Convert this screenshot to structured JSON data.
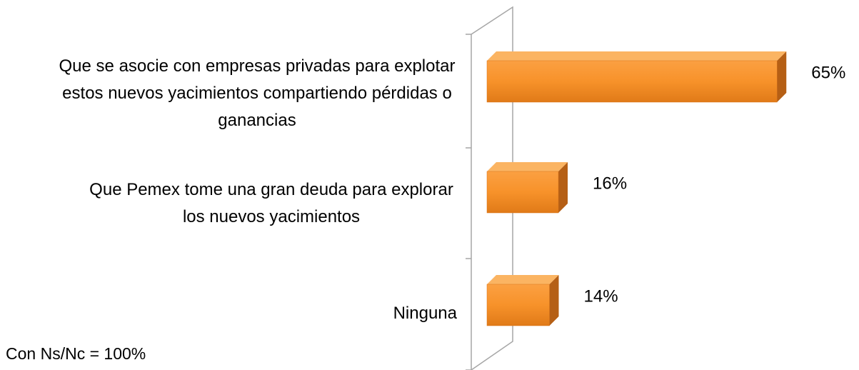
{
  "chart_data": {
    "type": "bar3d_horizontal",
    "categories": [
      "Que se asocie con empresas privadas para explotar estos nuevos yacimientos compartiendo pérdidas o ganancias",
      "Que Pemex tome una gran deuda para explorar los nuevos yacimientos",
      "Ninguna"
    ],
    "values": [
      65,
      16,
      14
    ],
    "value_labels": [
      "65%",
      "16%",
      "14%"
    ],
    "color": "#f7922a",
    "footnote": "Con Ns/Nc = 100%"
  }
}
